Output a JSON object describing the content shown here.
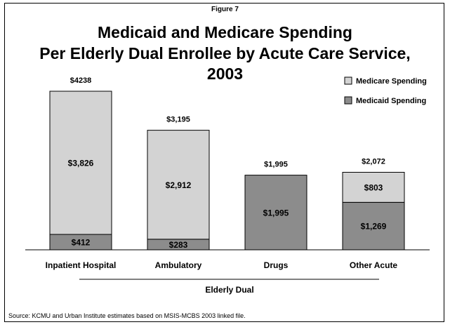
{
  "figure_label": "Figure 7",
  "title_lines": [
    "Medicaid and Medicare Spending",
    "Per Elderly Dual Enrollee by Acute Care Service,",
    "2003"
  ],
  "source": "Source: KCMU and Urban Institute estimates based on MSIS-MCBS 2003 linked file.",
  "colors": {
    "medicare": "#d3d3d3",
    "medicaid": "#8c8c8c"
  },
  "chart_data": {
    "type": "bar",
    "stacked": true,
    "categories": [
      "Inpatient Hospital",
      "Ambulatory",
      "Drugs",
      "Other Acute"
    ],
    "group_label": "Elderly Dual",
    "series": [
      {
        "name": "Medicaid Spending",
        "values": [
          412,
          283,
          1995,
          1269
        ],
        "labels": [
          "$412",
          "$283",
          "$1,995",
          "$1,269"
        ]
      },
      {
        "name": "Medicare Spending",
        "values": [
          3826,
          2912,
          0,
          803
        ],
        "labels": [
          "$3,826",
          "$2,912",
          "",
          "$803"
        ]
      }
    ],
    "totals": [
      4238,
      3195,
      1995,
      2072
    ],
    "total_labels": [
      "$4238",
      "$3,195",
      "$1,995",
      "$2,072"
    ],
    "legend": [
      {
        "name": "Medicare Spending",
        "color": "#d3d3d3"
      },
      {
        "name": "Medicaid Spending",
        "color": "#8c8c8c"
      }
    ],
    "legend_position": "top-right",
    "ylim": [
      0,
      4238
    ],
    "grid": false
  }
}
